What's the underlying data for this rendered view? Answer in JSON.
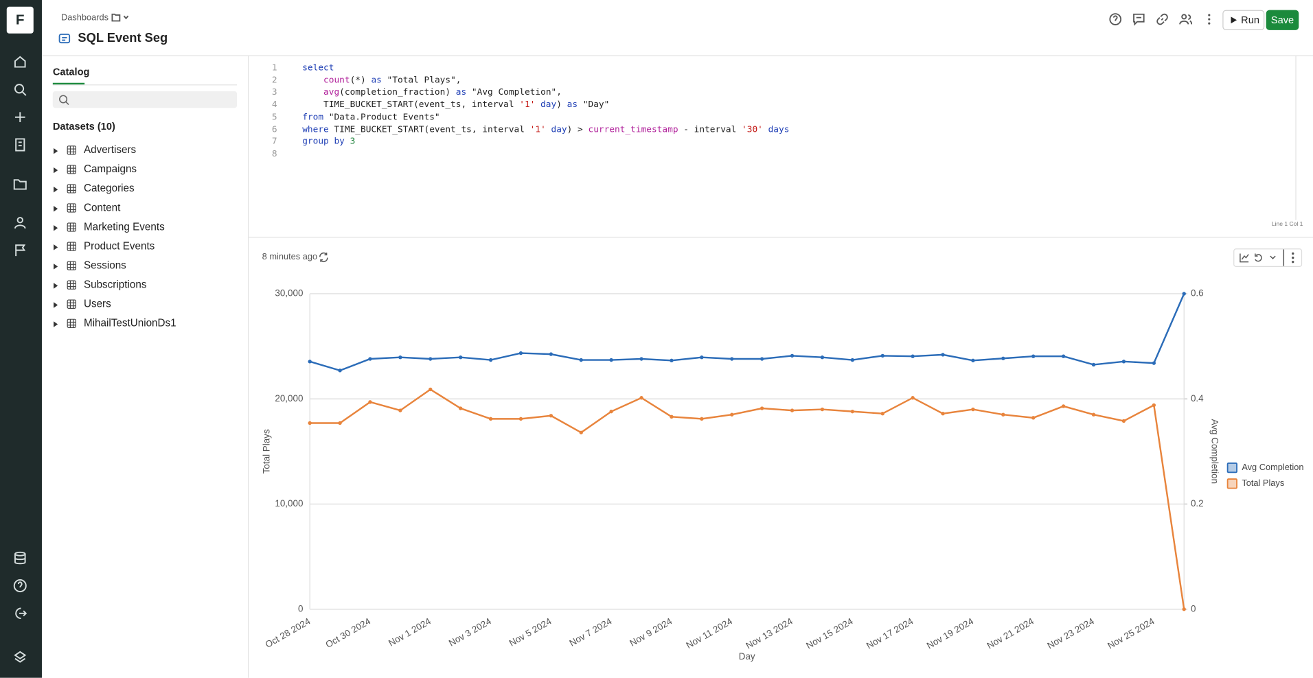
{
  "header": {
    "breadcrumb": "Dashboards",
    "title": "SQL Event Seg",
    "run": "Run",
    "save": "Save"
  },
  "catalog": {
    "tab": "Catalog",
    "datasets_heading": "Datasets (10)",
    "datasets": [
      "Advertisers",
      "Campaigns",
      "Categories",
      "Content",
      "Marketing Events",
      "Product Events",
      "Sessions",
      "Subscriptions",
      "Users",
      "MihailTestUnionDs1"
    ]
  },
  "editor": {
    "line_numbers": [
      1,
      2,
      3,
      4,
      5,
      6,
      7,
      8
    ],
    "lines": [
      [
        "select"
      ],
      [
        "    count",
        "(*) ",
        "as",
        " \"Total Plays\","
      ],
      [
        "    avg",
        "(completion_fraction) ",
        "as",
        " \"Avg Completion\","
      ],
      [
        "    TIME_BUCKET_START(event_ts, interval ",
        "'1'",
        " day",
        ") ",
        "as",
        " \"Day\""
      ],
      [
        "from",
        " \"Data.Product Events\""
      ],
      [
        "where",
        " TIME_BUCKET_START(event_ts, interval ",
        "'1'",
        " day",
        ") > ",
        "current_timestamp",
        " - interval ",
        "'30'",
        " days"
      ],
      [
        "group by",
        " ",
        "3"
      ],
      []
    ],
    "status": "Line 1 Col 1"
  },
  "results": {
    "updated": "8 minutes ago"
  },
  "chart_data": {
    "type": "line",
    "categories": [
      "Oct 28 2024",
      null,
      "Oct 30 2024",
      null,
      "Nov 1 2024",
      null,
      "Nov 3 2024",
      null,
      "Nov 5 2024",
      null,
      "Nov 7 2024",
      null,
      "Nov 9 2024",
      null,
      "Nov 11 2024",
      null,
      "Nov 13 2024",
      null,
      "Nov 15 2024",
      null,
      "Nov 17 2024",
      null,
      "Nov 19 2024",
      null,
      "Nov 21 2024",
      null,
      "Nov 23 2024",
      null,
      "Nov 25 2024",
      null
    ],
    "series": [
      {
        "name": "Avg Completion",
        "color": "#2b6cb8",
        "axis": "y2",
        "values": [
          0.471,
          0.454,
          0.476,
          0.479,
          0.476,
          0.479,
          0.474,
          0.487,
          0.485,
          0.474,
          0.474,
          0.476,
          0.473,
          0.479,
          0.476,
          0.476,
          0.482,
          0.479,
          0.474,
          0.482,
          0.481,
          0.484,
          0.473,
          0.477,
          0.481,
          0.481,
          0.465,
          0.471,
          0.468,
          0.6
        ]
      },
      {
        "name": "Total Plays",
        "color": "#e8843c",
        "values": [
          17700,
          17700,
          19700,
          18900,
          20900,
          19100,
          18100,
          18100,
          18400,
          16800,
          18800,
          20100,
          18300,
          18100,
          18500,
          19100,
          18900,
          19000,
          18800,
          18600,
          20100,
          18600,
          19000,
          18500,
          18200,
          19300,
          18500,
          17900,
          19400,
          0
        ]
      }
    ],
    "ylim": [
      0,
      30000
    ],
    "yticks": [
      0,
      {
        "value": 10000,
        "label": "10,000"
      },
      {
        "value": 20000,
        "label": "20,000"
      },
      {
        "value": 30000,
        "label": "30,000"
      }
    ],
    "y2lim": [
      0,
      0.6
    ],
    "y2ticks": [
      0,
      0.2,
      0.4,
      0.6
    ],
    "x_label": "Day",
    "y_label": "Total Plays",
    "y2_label": "Avg Completion",
    "grid": true,
    "legend": "right"
  }
}
